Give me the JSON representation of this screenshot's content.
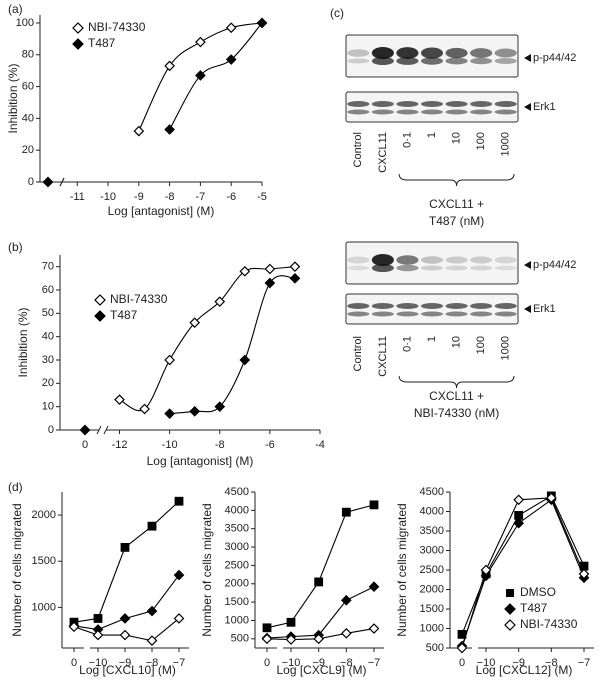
{
  "chart_data": [
    {
      "type": "line",
      "panel": "(a)",
      "x_label": "Log [antagonist] (M)",
      "y_label": "Inhibition (%)",
      "xlim": [
        -11.3,
        -5
      ],
      "ylim": [
        0,
        105
      ],
      "xticks": [
        -11,
        -10,
        -9,
        -8,
        -7,
        -6,
        -5
      ],
      "yticks": [
        0,
        20,
        40,
        60,
        80,
        100
      ],
      "series": [
        {
          "name": "NBI-74330",
          "color": "#000000",
          "marker": "diamond-open",
          "x": [
            0,
            -9,
            -8,
            -7,
            -6,
            -5
          ],
          "values": [
            0,
            32,
            73,
            88,
            97,
            100
          ]
        },
        {
          "name": "T487",
          "color": "#000000",
          "marker": "diamond-filled",
          "x": [
            0,
            -8,
            -7,
            -6,
            -5
          ],
          "values": [
            0,
            33,
            67,
            77,
            100
          ]
        }
      ]
    },
    {
      "type": "line",
      "panel": "(b)",
      "x_label": "Log [antagonist] (M)",
      "y_label": "Inhibition (%)",
      "xlim": [
        -12.3,
        -4
      ],
      "ylim": [
        0,
        75
      ],
      "xticks": [
        0,
        -12,
        -10,
        -8,
        -6,
        -4
      ],
      "yticks": [
        0,
        10,
        20,
        30,
        40,
        50,
        60,
        70
      ],
      "series": [
        {
          "name": "NBI-74330",
          "color": "#000000",
          "marker": "diamond-open",
          "x": [
            0,
            -12,
            -11,
            -10,
            -9,
            -8,
            -7,
            -6,
            -5
          ],
          "values": [
            0,
            13,
            9,
            30,
            46,
            55,
            68,
            69,
            70
          ]
        },
        {
          "name": "T487",
          "color": "#000000",
          "marker": "diamond-filled",
          "x": [
            0,
            -10,
            -9,
            -8,
            -7,
            -6,
            -5
          ],
          "values": [
            0,
            7,
            8,
            10,
            30,
            63,
            65
          ]
        }
      ]
    },
    {
      "type": "category-line",
      "panel": "(d)",
      "x_label": "Log [CXCL10] (M)",
      "y_label": "Number of cells migrated",
      "categories": [
        "0",
        "−10",
        "−9",
        "−8",
        "−7"
      ],
      "ylim": [
        560,
        2250
      ],
      "yticks": [
        1000,
        1500,
        2000
      ],
      "series": [
        {
          "name": "DMSO",
          "color": "#000000",
          "marker": "square-filled",
          "values": [
            840,
            880,
            1650,
            1880,
            2150
          ]
        },
        {
          "name": "T487",
          "color": "#000000",
          "marker": "diamond-filled",
          "values": [
            800,
            760,
            880,
            960,
            1350
          ]
        },
        {
          "name": "NBI-74330",
          "color": "#000000",
          "marker": "diamond-open",
          "values": [
            790,
            700,
            700,
            640,
            880
          ]
        }
      ]
    },
    {
      "type": "category-line",
      "x_label": "Log [CXCL9] (M)",
      "y_label": "Number of cells migrated",
      "categories": [
        "0",
        "−10",
        "−9",
        "−8",
        "−7"
      ],
      "ylim": [
        250,
        4500
      ],
      "yticks": [
        500,
        1000,
        1500,
        2000,
        2500,
        3000,
        3500,
        4000,
        4500
      ],
      "series": [
        {
          "name": "DMSO",
          "color": "#000000",
          "marker": "square-filled",
          "values": [
            800,
            950,
            2050,
            3950,
            4150
          ]
        },
        {
          "name": "T487",
          "color": "#000000",
          "marker": "diamond-filled",
          "values": [
            520,
            560,
            600,
            1550,
            1920
          ]
        },
        {
          "name": "NBI-74330",
          "color": "#000000",
          "marker": "diamond-open",
          "values": [
            500,
            480,
            500,
            650,
            780
          ]
        }
      ]
    },
    {
      "type": "category-line",
      "x_label": "Log [CXCL12] (M)",
      "y_label": "Number of cells migrated",
      "legend": "lower right",
      "categories": [
        "0",
        "−10",
        "−9",
        "−8",
        "−7"
      ],
      "ylim": [
        500,
        4500
      ],
      "yticks": [
        500,
        1000,
        1500,
        2000,
        2500,
        3000,
        3500,
        4000,
        4500
      ],
      "series": [
        {
          "name": "DMSO",
          "color": "#000000",
          "marker": "square-filled",
          "values": [
            850,
            2400,
            3900,
            4400,
            2600
          ]
        },
        {
          "name": "T487",
          "color": "#000000",
          "marker": "diamond-filled",
          "values": [
            550,
            2350,
            3700,
            4300,
            2300
          ]
        },
        {
          "name": "NBI-74330",
          "color": "#000000",
          "marker": "diamond-open",
          "values": [
            500,
            2500,
            4300,
            4350,
            2400
          ]
        }
      ]
    }
  ],
  "blots": {
    "panel": "(c)",
    "items": [
      {
        "bands": [
          "p-p44/42",
          "Erk1"
        ],
        "lanes": [
          "Control",
          "CXCL11",
          "0·1",
          "1",
          "10",
          "100",
          "1000"
        ],
        "treatment": [
          "CXCL11 +",
          "T487 (nM)"
        ]
      },
      {
        "bands": [
          "p-p44/42",
          "Erk1"
        ],
        "lanes": [
          "Control",
          "CXCL11",
          "0·1",
          "1",
          "10",
          "100",
          "1000"
        ],
        "treatment": [
          "CXCL11 +",
          "NBI-74330 (nM)"
        ]
      }
    ]
  }
}
